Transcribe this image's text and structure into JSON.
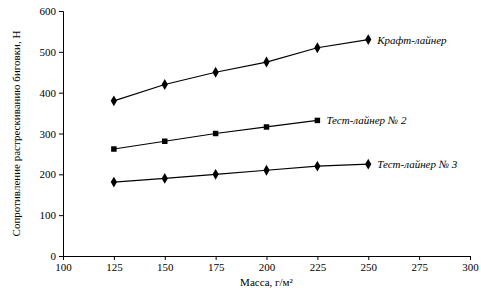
{
  "chart_data": {
    "type": "line",
    "x_label": "Масса, г/м²",
    "y_label": "Сопротивление растрескиванию биговки, Н",
    "x": [
      125,
      150,
      175,
      200,
      225,
      250
    ],
    "series": [
      {
        "name": "Крафт-лайнер",
        "color": "#000000",
        "marker": "diamond",
        "values": [
          380,
          420,
          450,
          475,
          510,
          530
        ]
      },
      {
        "name": "Тест-лайнер № 2",
        "color": "#000000",
        "marker": "square",
        "values": [
          262,
          281,
          300,
          316,
          332,
          null
        ]
      },
      {
        "name": "Тест-лайнер № 3",
        "color": "#000000",
        "marker": "diamond",
        "values": [
          181,
          190,
          200,
          210,
          220,
          225
        ]
      }
    ],
    "xlim": [
      100,
      300
    ],
    "xticks": [
      100,
      125,
      150,
      175,
      200,
      225,
      250,
      275,
      300
    ],
    "ylim": [
      0,
      600
    ],
    "yticks": [
      0,
      100,
      200,
      300,
      400,
      500,
      600
    ],
    "grid": false
  }
}
